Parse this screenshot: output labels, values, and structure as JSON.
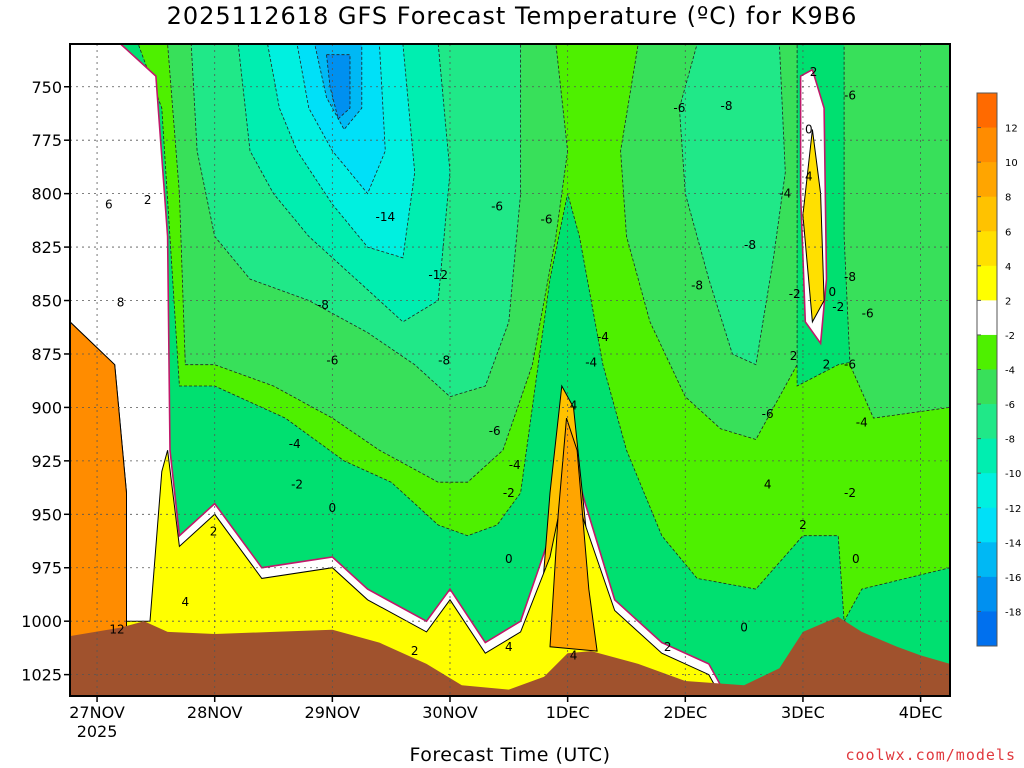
{
  "page": {
    "title": "2025112618 GFS Forecast Temperature (ºC) for K9B6",
    "credit": "coolwx.com/models"
  },
  "colors": {
    "ground": "#a0522d",
    "zero_line": "#c0186a",
    "frame": "#000000"
  },
  "chart_data": {
    "type": "heatmap",
    "title": "2025112618 GFS Forecast Temperature (ºC) for K9B6",
    "xlabel": "Forecast Time (UTC)",
    "ylabel": "",
    "x_unit": "days since 27NOV 00Z",
    "xlim": [
      -0.23,
      7.25
    ],
    "ylim": [
      730,
      1035
    ],
    "y_inverted": true,
    "grid": true,
    "x_ticks": [
      {
        "x": 0,
        "label": "27NOV",
        "sub": "2025"
      },
      {
        "x": 1,
        "label": "28NOV",
        "sub": ""
      },
      {
        "x": 2,
        "label": "29NOV",
        "sub": ""
      },
      {
        "x": 3,
        "label": "30NOV",
        "sub": ""
      },
      {
        "x": 4,
        "label": "1DEC",
        "sub": ""
      },
      {
        "x": 5,
        "label": "2DEC",
        "sub": ""
      },
      {
        "x": 6,
        "label": "3DEC",
        "sub": ""
      },
      {
        "x": 7,
        "label": "4DEC",
        "sub": ""
      }
    ],
    "y_ticks": [
      750,
      775,
      800,
      825,
      850,
      875,
      900,
      925,
      950,
      975,
      1000,
      1025
    ],
    "colorbar": {
      "levels": [
        {
          "min": 12,
          "max": 14,
          "color": "#ff6a00"
        },
        {
          "min": 10,
          "max": 12,
          "color": "#ff8c00"
        },
        {
          "min": 8,
          "max": 10,
          "color": "#ffa500"
        },
        {
          "min": 6,
          "max": 8,
          "color": "#ffc200"
        },
        {
          "min": 4,
          "max": 6,
          "color": "#ffe000"
        },
        {
          "min": 2,
          "max": 4,
          "color": "#ffff00"
        },
        {
          "min": -2,
          "max": 2,
          "color": "#ffffff"
        },
        {
          "min": -4,
          "max": -2,
          "color": "#4ef000"
        },
        {
          "min": -6,
          "max": -4,
          "color": "#38e05a"
        },
        {
          "min": -8,
          "max": -6,
          "color": "#20e888"
        },
        {
          "min": -10,
          "max": -8,
          "color": "#00eeb0"
        },
        {
          "min": -12,
          "max": -10,
          "color": "#00f0e0"
        },
        {
          "min": -14,
          "max": -12,
          "color": "#00e0f8"
        },
        {
          "min": -16,
          "max": -14,
          "color": "#00b8f4"
        },
        {
          "min": -18,
          "max": -16,
          "color": "#0090f0"
        },
        {
          "min": -20,
          "max": -18,
          "color": "#0070ee"
        }
      ],
      "labels": [
        "12",
        "10",
        "8",
        "6",
        "4",
        "2",
        "-2",
        "-4",
        "-6",
        "-8",
        "-10",
        "-12",
        "-14",
        "-16",
        "-18"
      ]
    },
    "ground_surface": [
      {
        "x": -0.23,
        "p": 1007
      },
      {
        "x": 0.2,
        "p": 1003
      },
      {
        "x": 0.4,
        "p": 1000
      },
      {
        "x": 0.6,
        "p": 1005
      },
      {
        "x": 1.0,
        "p": 1006
      },
      {
        "x": 1.5,
        "p": 1005
      },
      {
        "x": 2.0,
        "p": 1004
      },
      {
        "x": 2.4,
        "p": 1010
      },
      {
        "x": 2.8,
        "p": 1020
      },
      {
        "x": 3.1,
        "p": 1030
      },
      {
        "x": 3.5,
        "p": 1032
      },
      {
        "x": 3.8,
        "p": 1026
      },
      {
        "x": 4.0,
        "p": 1015
      },
      {
        "x": 4.2,
        "p": 1014
      },
      {
        "x": 4.6,
        "p": 1020
      },
      {
        "x": 5.0,
        "p": 1028
      },
      {
        "x": 5.5,
        "p": 1030
      },
      {
        "x": 5.8,
        "p": 1022
      },
      {
        "x": 6.0,
        "p": 1005
      },
      {
        "x": 6.3,
        "p": 998
      },
      {
        "x": 6.5,
        "p": 1005
      },
      {
        "x": 6.8,
        "p": 1012
      },
      {
        "x": 7.0,
        "p": 1016
      },
      {
        "x": 7.25,
        "p": 1020
      }
    ],
    "filled_regions": [
      {
        "level": 6,
        "points": [
          [
            -0.23,
            730
          ],
          [
            0.1,
            740
          ],
          [
            0.3,
            760
          ],
          [
            0.45,
            800
          ],
          [
            0.5,
            860
          ],
          [
            0.48,
            920
          ],
          [
            0.45,
            1000
          ],
          [
            -0.23,
            1010
          ]
        ]
      },
      {
        "level": 4,
        "points": [
          [
            0.1,
            730
          ],
          [
            0.35,
            745
          ],
          [
            0.5,
            790
          ],
          [
            0.55,
            880
          ],
          [
            0.55,
            1000
          ],
          [
            0.1,
            1000
          ],
          [
            -0.23,
            1010
          ],
          [
            -0.23,
            730
          ]
        ]
      },
      {
        "level": 2,
        "points": [
          [
            0.2,
            730
          ],
          [
            0.5,
            745
          ],
          [
            0.6,
            820
          ],
          [
            0.62,
            920
          ],
          [
            0.7,
            960
          ],
          [
            1.0,
            945
          ],
          [
            1.4,
            975
          ],
          [
            2.0,
            970
          ],
          [
            2.3,
            985
          ],
          [
            2.8,
            1000
          ],
          [
            3.0,
            985
          ],
          [
            3.3,
            1010
          ],
          [
            3.6,
            1000
          ],
          [
            3.85,
            960
          ],
          [
            4.0,
            915
          ],
          [
            4.15,
            945
          ],
          [
            4.4,
            990
          ],
          [
            4.8,
            1010
          ],
          [
            5.2,
            1020
          ],
          [
            5.3,
            1030
          ],
          [
            -0.23,
            1035
          ],
          [
            -0.23,
            730
          ]
        ]
      },
      {
        "level": 10,
        "points": [
          [
            -0.23,
            860
          ],
          [
            0.15,
            880
          ],
          [
            0.25,
            940
          ],
          [
            0.25,
            1010
          ],
          [
            -0.23,
            1010
          ]
        ]
      },
      {
        "level": 6,
        "points": [
          [
            3.75,
            1010
          ],
          [
            3.85,
            940
          ],
          [
            3.95,
            890
          ],
          [
            4.05,
            900
          ],
          [
            4.2,
            980
          ],
          [
            4.3,
            1015
          ],
          [
            3.75,
            1020
          ]
        ]
      },
      {
        "level": 2,
        "points": [
          [
            5.98,
            745
          ],
          [
            6.08,
            742
          ],
          [
            6.18,
            760
          ],
          [
            6.2,
            840
          ],
          [
            6.15,
            870
          ],
          [
            6.02,
            860
          ],
          [
            5.98,
            800
          ]
        ]
      },
      {
        "level": 4,
        "points": [
          [
            6.0,
            810
          ],
          [
            6.08,
            770
          ],
          [
            6.15,
            800
          ],
          [
            6.18,
            850
          ],
          [
            6.08,
            860
          ]
        ]
      }
    ],
    "cold_regions": [
      {
        "level": -4,
        "points": [
          [
            0.35,
            730
          ],
          [
            5.95,
            730
          ],
          [
            5.95,
            890
          ],
          [
            6.3,
            880
          ],
          [
            7.25,
            870
          ],
          [
            7.25,
            975
          ],
          [
            6.5,
            985
          ],
          [
            6.35,
            1000
          ],
          [
            6.3,
            960
          ],
          [
            6.0,
            960
          ],
          [
            5.6,
            985
          ],
          [
            5.1,
            980
          ],
          [
            4.8,
            960
          ],
          [
            4.5,
            920
          ],
          [
            4.3,
            880
          ],
          [
            4.1,
            820
          ],
          [
            4.0,
            800
          ],
          [
            3.85,
            840
          ],
          [
            3.75,
            880
          ],
          [
            3.6,
            940
          ],
          [
            3.4,
            955
          ],
          [
            3.15,
            960
          ],
          [
            2.9,
            955
          ],
          [
            2.5,
            935
          ],
          [
            2.1,
            925
          ],
          [
            1.6,
            905
          ],
          [
            1.0,
            890
          ],
          [
            0.7,
            890
          ],
          [
            0.55,
            760
          ]
        ]
      },
      {
        "level": -6,
        "points": [
          [
            0.6,
            730
          ],
          [
            3.9,
            730
          ],
          [
            4.0,
            780
          ],
          [
            3.9,
            820
          ],
          [
            3.7,
            880
          ],
          [
            3.45,
            920
          ],
          [
            3.15,
            935
          ],
          [
            2.9,
            935
          ],
          [
            2.4,
            920
          ],
          [
            2.0,
            905
          ],
          [
            1.5,
            890
          ],
          [
            1.0,
            880
          ],
          [
            0.75,
            880
          ],
          [
            0.7,
            800
          ]
        ]
      },
      {
        "level": -8,
        "points": [
          [
            0.8,
            730
          ],
          [
            3.6,
            730
          ],
          [
            3.6,
            800
          ],
          [
            3.5,
            860
          ],
          [
            3.3,
            890
          ],
          [
            3.0,
            895
          ],
          [
            2.7,
            880
          ],
          [
            2.3,
            865
          ],
          [
            1.8,
            850
          ],
          [
            1.3,
            840
          ],
          [
            1.0,
            820
          ],
          [
            0.85,
            780
          ]
        ]
      },
      {
        "level": -10,
        "points": [
          [
            1.2,
            730
          ],
          [
            2.9,
            730
          ],
          [
            3.0,
            790
          ],
          [
            2.9,
            850
          ],
          [
            2.6,
            860
          ],
          [
            2.2,
            840
          ],
          [
            1.8,
            820
          ],
          [
            1.5,
            800
          ],
          [
            1.3,
            780
          ]
        ]
      },
      {
        "level": -12,
        "points": [
          [
            1.45,
            730
          ],
          [
            2.6,
            730
          ],
          [
            2.7,
            790
          ],
          [
            2.6,
            830
          ],
          [
            2.3,
            825
          ],
          [
            2.0,
            805
          ],
          [
            1.7,
            780
          ],
          [
            1.55,
            760
          ]
        ]
      },
      {
        "level": -14,
        "points": [
          [
            1.7,
            730
          ],
          [
            2.4,
            730
          ],
          [
            2.45,
            780
          ],
          [
            2.3,
            800
          ],
          [
            2.0,
            780
          ],
          [
            1.8,
            760
          ]
        ]
      },
      {
        "level": -16,
        "points": [
          [
            1.85,
            730
          ],
          [
            2.25,
            730
          ],
          [
            2.25,
            760
          ],
          [
            2.1,
            770
          ],
          [
            1.95,
            755
          ]
        ]
      },
      {
        "level": -18,
        "points": [
          [
            1.95,
            735
          ],
          [
            2.15,
            735
          ],
          [
            2.15,
            760
          ],
          [
            2.05,
            765
          ],
          [
            1.98,
            750
          ]
        ]
      },
      {
        "level": -6,
        "points": [
          [
            4.6,
            730
          ],
          [
            5.95,
            730
          ],
          [
            5.95,
            880
          ],
          [
            5.6,
            915
          ],
          [
            5.3,
            910
          ],
          [
            5.0,
            895
          ],
          [
            4.7,
            860
          ],
          [
            4.5,
            820
          ],
          [
            4.45,
            780
          ]
        ]
      },
      {
        "level": -8,
        "points": [
          [
            5.1,
            730
          ],
          [
            5.8,
            730
          ],
          [
            5.85,
            790
          ],
          [
            5.75,
            830
          ],
          [
            5.6,
            880
          ],
          [
            5.4,
            875
          ],
          [
            5.2,
            840
          ],
          [
            5.0,
            800
          ],
          [
            4.95,
            760
          ]
        ]
      },
      {
        "level": -6,
        "points": [
          [
            6.35,
            730
          ],
          [
            7.25,
            730
          ],
          [
            7.25,
            900
          ],
          [
            6.6,
            905
          ],
          [
            6.4,
            880
          ],
          [
            6.35,
            820
          ]
        ]
      }
    ],
    "contour_labels": [
      {
        "x": 0.1,
        "p": 805,
        "text": "6"
      },
      {
        "x": 0.43,
        "p": 803,
        "text": "2"
      },
      {
        "x": 0.2,
        "p": 851,
        "text": "8"
      },
      {
        "x": 0.17,
        "p": 1004,
        "text": "12"
      },
      {
        "x": 0.75,
        "p": 991,
        "text": "4"
      },
      {
        "x": 0.99,
        "p": 958,
        "text": "2"
      },
      {
        "x": 1.7,
        "p": 936,
        "text": "-2"
      },
      {
        "x": 1.68,
        "p": 917,
        "text": "-4"
      },
      {
        "x": 2.0,
        "p": 878,
        "text": "-6"
      },
      {
        "x": 1.92,
        "p": 852,
        "text": "-8"
      },
      {
        "x": 2.45,
        "p": 811,
        "text": "-14"
      },
      {
        "x": 2.9,
        "p": 838,
        "text": "-12"
      },
      {
        "x": 2.95,
        "p": 878,
        "text": "-8"
      },
      {
        "x": 3.4,
        "p": 806,
        "text": "-6"
      },
      {
        "x": 3.38,
        "p": 911,
        "text": "-6"
      },
      {
        "x": 3.55,
        "p": 927,
        "text": "-4"
      },
      {
        "x": 3.5,
        "p": 940,
        "text": "-2"
      },
      {
        "x": 3.5,
        "p": 971,
        "text": "0"
      },
      {
        "x": 2.0,
        "p": 947,
        "text": "0"
      },
      {
        "x": 3.5,
        "p": 1012,
        "text": "4"
      },
      {
        "x": 2.7,
        "p": 1014,
        "text": "2"
      },
      {
        "x": 4.05,
        "p": 899,
        "text": "4"
      },
      {
        "x": 4.2,
        "p": 879,
        "text": "-4"
      },
      {
        "x": 4.3,
        "p": 867,
        "text": "-4"
      },
      {
        "x": 3.82,
        "p": 812,
        "text": "-6"
      },
      {
        "x": 4.95,
        "p": 760,
        "text": "-6"
      },
      {
        "x": 5.35,
        "p": 759,
        "text": "-8"
      },
      {
        "x": 5.1,
        "p": 843,
        "text": "-8"
      },
      {
        "x": 5.55,
        "p": 824,
        "text": "-8"
      },
      {
        "x": 5.7,
        "p": 903,
        "text": "-6"
      },
      {
        "x": 5.7,
        "p": 936,
        "text": "4"
      },
      {
        "x": 5.85,
        "p": 800,
        "text": "-4"
      },
      {
        "x": 5.93,
        "p": 847,
        "text": "-2"
      },
      {
        "x": 5.92,
        "p": 876,
        "text": "2"
      },
      {
        "x": 6.0,
        "p": 955,
        "text": "2"
      },
      {
        "x": 6.05,
        "p": 770,
        "text": "0"
      },
      {
        "x": 6.09,
        "p": 743,
        "text": "2"
      },
      {
        "x": 6.05,
        "p": 792,
        "text": "4"
      },
      {
        "x": 6.4,
        "p": 754,
        "text": "-6"
      },
      {
        "x": 6.25,
        "p": 846,
        "text": "0"
      },
      {
        "x": 6.3,
        "p": 853,
        "text": "-2"
      },
      {
        "x": 6.4,
        "p": 839,
        "text": "-8"
      },
      {
        "x": 6.55,
        "p": 856,
        "text": "-6"
      },
      {
        "x": 6.4,
        "p": 880,
        "text": "-6"
      },
      {
        "x": 6.5,
        "p": 907,
        "text": "-4"
      },
      {
        "x": 6.4,
        "p": 940,
        "text": "-2"
      },
      {
        "x": 6.45,
        "p": 971,
        "text": "0"
      },
      {
        "x": 4.85,
        "p": 1012,
        "text": "2"
      },
      {
        "x": 5.5,
        "p": 1003,
        "text": "0"
      },
      {
        "x": 6.2,
        "p": 880,
        "text": "2"
      },
      {
        "x": 4.05,
        "p": 1016,
        "text": "4"
      }
    ]
  }
}
